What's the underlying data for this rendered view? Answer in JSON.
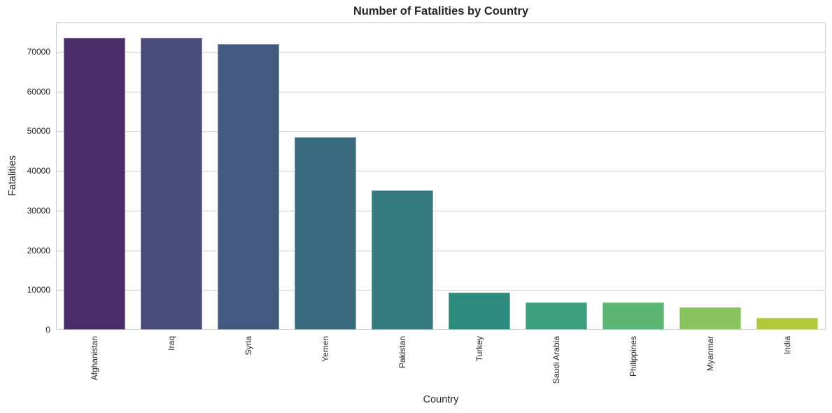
{
  "chart_data": {
    "type": "bar",
    "title": "Number of Fatalities by Country",
    "xlabel": "Country",
    "ylabel": "Fatalities",
    "categories": [
      "Afghanistan",
      "Iraq",
      "Syria",
      "Yemen",
      "Pakistan",
      "Turkey",
      "Saudi Arabia",
      "Philippines",
      "Myanmar",
      "India"
    ],
    "values": [
      73600,
      73600,
      72000,
      48500,
      35100,
      9400,
      6900,
      6900,
      5700,
      3000
    ],
    "colors": [
      "#4a2c69",
      "#4a4a7b",
      "#435a80",
      "#3a6a7e",
      "#347a7e",
      "#2e8a7c",
      "#3ba07b",
      "#5db573",
      "#89c35d",
      "#b3c73a"
    ],
    "yticks": [
      0,
      10000,
      20000,
      30000,
      40000,
      50000,
      60000,
      70000
    ],
    "ylim": [
      0,
      77400
    ],
    "grid": "horizontal",
    "legend": null,
    "x_tick_rotation": 90
  },
  "style": {
    "grid_color": "#cccccc",
    "text_color": "#262626",
    "background": "#ffffff"
  }
}
